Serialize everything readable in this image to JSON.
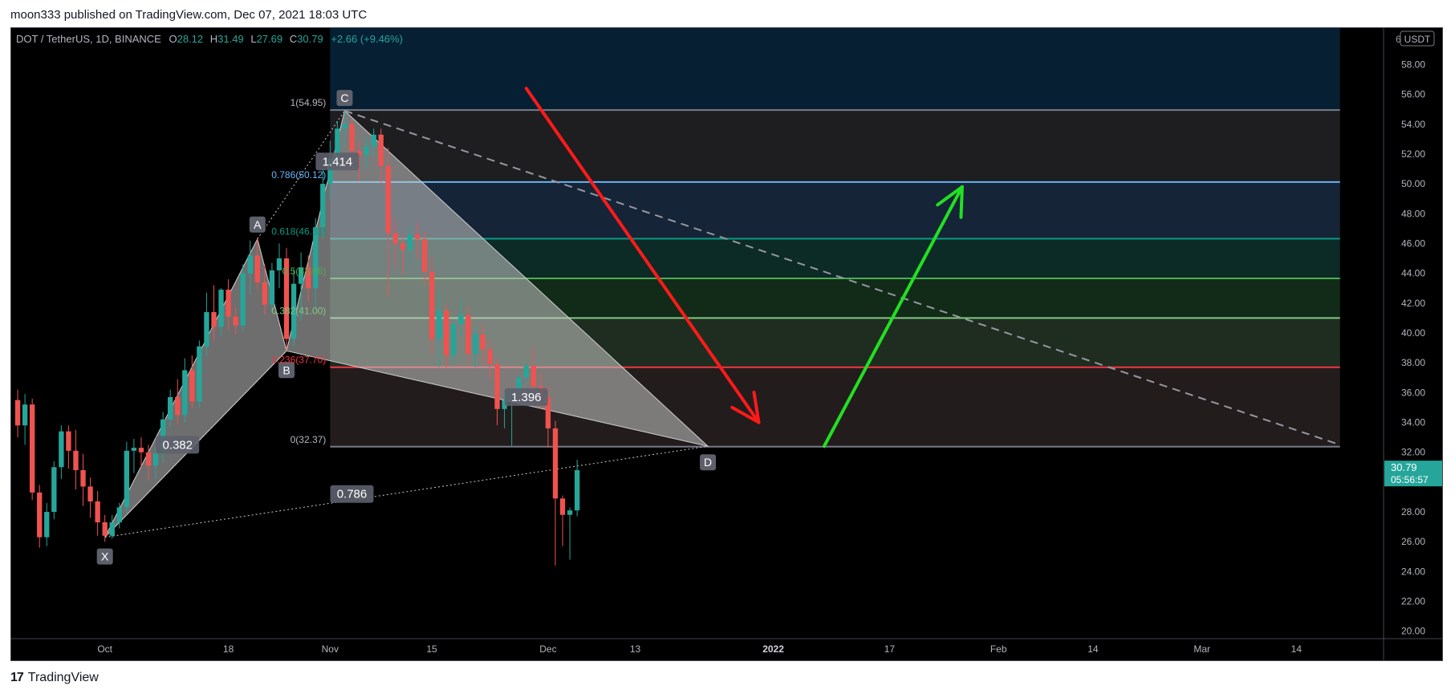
{
  "header": {
    "published": "moon333 published on TradingView.com, Dec 07, 2021 18:03 UTC"
  },
  "footer": {
    "brand": "TradingView",
    "logo": "17"
  },
  "chart_data": {
    "type": "candlestick",
    "symbol_line": {
      "symbol": "DOT / TetherUS, 1D, BINANCE",
      "o_label": "O",
      "open": "28.12",
      "h_label": "H",
      "high": "31.49",
      "l_label": "L",
      "low": "27.69",
      "c_label": "C",
      "close": "30.79",
      "change": "+2.66 (+9.46%)"
    },
    "currency_badge": "USDT",
    "y_top_partial": "6",
    "ylim": [
      19.5,
      60.5
    ],
    "y_ticks": [
      20,
      22,
      24,
      26,
      28,
      30,
      32,
      34,
      36,
      38,
      40,
      42,
      44,
      46,
      48,
      50,
      52,
      54,
      56,
      58
    ],
    "y_tick_labels": [
      "20.00",
      "22.00",
      "24.00",
      "26.00",
      "28.00",
      "",
      "32.00",
      "34.00",
      "36.00",
      "38.00",
      "40.00",
      "42.00",
      "44.00",
      "46.00",
      "48.00",
      "50.00",
      "52.00",
      "54.00",
      "56.00",
      "58.00"
    ],
    "x_ticks": [
      {
        "label": "Oct",
        "day": 0
      },
      {
        "label": "18",
        "day": 17
      },
      {
        "label": "Nov",
        "day": 31
      },
      {
        "label": "15",
        "day": 45
      },
      {
        "label": "Dec",
        "day": 61
      },
      {
        "label": "13",
        "day": 73
      },
      {
        "label": "2022",
        "day": 92,
        "bold": true
      },
      {
        "label": "17",
        "day": 108
      },
      {
        "label": "Feb",
        "day": 123
      },
      {
        "label": "14",
        "day": 136
      },
      {
        "label": "Mar",
        "day": 151
      },
      {
        "label": "14",
        "day": 164
      }
    ],
    "xlim_days": [
      -13,
      176
    ],
    "price_label": {
      "value": "30.79",
      "countdown": "05:56:57",
      "color": "#26a69a"
    },
    "candles": [
      {
        "d": -12,
        "o": 35.5,
        "h": 36.2,
        "c": 33.8,
        "l": 33.0
      },
      {
        "d": -11,
        "o": 33.8,
        "h": 35.9,
        "c": 35.2,
        "l": 32.5
      },
      {
        "d": -10,
        "o": 35.2,
        "h": 35.6,
        "c": 29.3,
        "l": 28.8
      },
      {
        "d": -9,
        "o": 29.3,
        "h": 29.8,
        "c": 26.3,
        "l": 25.6
      },
      {
        "d": -8,
        "o": 26.3,
        "h": 28.6,
        "c": 28.0,
        "l": 25.7
      },
      {
        "d": -7,
        "o": 28.0,
        "h": 31.4,
        "c": 31.0,
        "l": 27.5
      },
      {
        "d": -6,
        "o": 31.0,
        "h": 33.8,
        "c": 33.4,
        "l": 30.2
      },
      {
        "d": -5,
        "o": 33.4,
        "h": 33.8,
        "c": 32.1,
        "l": 30.9
      },
      {
        "d": -4,
        "o": 32.1,
        "h": 33.5,
        "c": 30.8,
        "l": 29.5
      },
      {
        "d": -3,
        "o": 30.8,
        "h": 31.9,
        "c": 29.7,
        "l": 28.4
      },
      {
        "d": -2,
        "o": 29.7,
        "h": 30.3,
        "c": 28.7,
        "l": 27.6
      },
      {
        "d": -1,
        "o": 28.7,
        "h": 29.4,
        "c": 27.3,
        "l": 26.4
      },
      {
        "d": 0,
        "o": 27.3,
        "h": 27.8,
        "c": 26.4,
        "l": 26.0
      },
      {
        "d": 1,
        "o": 26.4,
        "h": 27.8,
        "c": 27.3,
        "l": 26.2
      },
      {
        "d": 2,
        "o": 27.3,
        "h": 28.6,
        "c": 28.3,
        "l": 26.9
      },
      {
        "d": 3,
        "o": 28.3,
        "h": 32.7,
        "c": 32.1,
        "l": 27.9
      },
      {
        "d": 4,
        "o": 32.1,
        "h": 32.9,
        "c": 32.3,
        "l": 30.6
      },
      {
        "d": 5,
        "o": 32.3,
        "h": 33.0,
        "c": 32.0,
        "l": 31.0
      },
      {
        "d": 6,
        "o": 32.0,
        "h": 32.5,
        "c": 31.1,
        "l": 30.1
      },
      {
        "d": 7,
        "o": 31.1,
        "h": 32.3,
        "c": 31.9,
        "l": 30.2
      },
      {
        "d": 8,
        "o": 31.9,
        "h": 34.7,
        "c": 34.2,
        "l": 31.3
      },
      {
        "d": 9,
        "o": 34.2,
        "h": 36.2,
        "c": 35.7,
        "l": 33.7
      },
      {
        "d": 10,
        "o": 35.7,
        "h": 36.9,
        "c": 34.5,
        "l": 33.9
      },
      {
        "d": 11,
        "o": 34.5,
        "h": 38.3,
        "c": 37.5,
        "l": 34.0
      },
      {
        "d": 12,
        "o": 37.5,
        "h": 38.5,
        "c": 35.4,
        "l": 35.0
      },
      {
        "d": 13,
        "o": 35.4,
        "h": 39.5,
        "c": 39.1,
        "l": 35.0
      },
      {
        "d": 14,
        "o": 39.1,
        "h": 42.7,
        "c": 41.4,
        "l": 38.4
      },
      {
        "d": 15,
        "o": 41.4,
        "h": 43.2,
        "c": 40.4,
        "l": 39.4
      },
      {
        "d": 16,
        "o": 40.4,
        "h": 43.0,
        "c": 42.9,
        "l": 39.8
      },
      {
        "d": 17,
        "o": 42.9,
        "h": 43.6,
        "c": 41.1,
        "l": 40.2
      },
      {
        "d": 18,
        "o": 41.1,
        "h": 41.7,
        "c": 40.5,
        "l": 39.9
      },
      {
        "d": 19,
        "o": 40.5,
        "h": 44.6,
        "c": 44.0,
        "l": 40.1
      },
      {
        "d": 20,
        "o": 44.0,
        "h": 46.2,
        "c": 45.2,
        "l": 42.6
      },
      {
        "d": 21,
        "o": 45.2,
        "h": 46.4,
        "c": 43.4,
        "l": 42.9
      },
      {
        "d": 22,
        "o": 43.4,
        "h": 44.6,
        "c": 41.9,
        "l": 41.2
      },
      {
        "d": 23,
        "o": 41.9,
        "h": 44.7,
        "c": 44.2,
        "l": 41.4
      },
      {
        "d": 24,
        "o": 44.2,
        "h": 46.0,
        "c": 45.0,
        "l": 43.0
      },
      {
        "d": 25,
        "o": 45.0,
        "h": 45.7,
        "c": 39.6,
        "l": 38.8
      },
      {
        "d": 26,
        "o": 39.6,
        "h": 44.3,
        "c": 43.3,
        "l": 39.1
      },
      {
        "d": 27,
        "o": 43.3,
        "h": 45.4,
        "c": 44.4,
        "l": 40.8
      },
      {
        "d": 28,
        "o": 44.4,
        "h": 45.2,
        "c": 43.0,
        "l": 42.1
      },
      {
        "d": 29,
        "o": 43.0,
        "h": 47.7,
        "c": 47.1,
        "l": 41.7
      },
      {
        "d": 30,
        "o": 47.1,
        "h": 51.0,
        "c": 50.0,
        "l": 46.3
      },
      {
        "d": 31,
        "o": 50.0,
        "h": 52.9,
        "c": 51.7,
        "l": 48.9
      },
      {
        "d": 32,
        "o": 51.7,
        "h": 54.2,
        "c": 53.7,
        "l": 50.9
      },
      {
        "d": 33,
        "o": 53.7,
        "h": 54.9,
        "c": 54.0,
        "l": 52.4
      },
      {
        "d": 34,
        "o": 54.0,
        "h": 54.4,
        "c": 52.2,
        "l": 50.9
      },
      {
        "d": 35,
        "o": 52.2,
        "h": 52.8,
        "c": 51.9,
        "l": 50.2
      },
      {
        "d": 36,
        "o": 51.9,
        "h": 53.2,
        "c": 52.5,
        "l": 51.0
      },
      {
        "d": 37,
        "o": 52.5,
        "h": 53.7,
        "c": 53.3,
        "l": 51.9
      },
      {
        "d": 38,
        "o": 53.3,
        "h": 53.7,
        "c": 51.2,
        "l": 50.1
      },
      {
        "d": 39,
        "o": 51.2,
        "h": 52.4,
        "c": 46.7,
        "l": 42.4
      },
      {
        "d": 40,
        "o": 46.7,
        "h": 47.7,
        "c": 46.0,
        "l": 44.3
      },
      {
        "d": 41,
        "o": 46.0,
        "h": 46.6,
        "c": 45.6,
        "l": 43.9
      },
      {
        "d": 42,
        "o": 45.6,
        "h": 47.1,
        "c": 46.6,
        "l": 44.7
      },
      {
        "d": 43,
        "o": 46.6,
        "h": 47.4,
        "c": 46.3,
        "l": 45.0
      },
      {
        "d": 44,
        "o": 46.3,
        "h": 46.8,
        "c": 44.1,
        "l": 43.2
      },
      {
        "d": 45,
        "o": 44.1,
        "h": 45.1,
        "c": 39.6,
        "l": 38.6
      },
      {
        "d": 46,
        "o": 39.6,
        "h": 42.8,
        "c": 41.5,
        "l": 37.7
      },
      {
        "d": 47,
        "o": 41.5,
        "h": 42.0,
        "c": 38.5,
        "l": 37.6
      },
      {
        "d": 48,
        "o": 38.5,
        "h": 40.8,
        "c": 40.6,
        "l": 37.9
      },
      {
        "d": 49,
        "o": 40.6,
        "h": 42.3,
        "c": 41.2,
        "l": 39.8
      },
      {
        "d": 50,
        "o": 41.2,
        "h": 41.8,
        "c": 38.6,
        "l": 37.9
      },
      {
        "d": 51,
        "o": 38.6,
        "h": 40.4,
        "c": 39.9,
        "l": 37.7
      },
      {
        "d": 52,
        "o": 39.9,
        "h": 40.6,
        "c": 38.9,
        "l": 37.9
      },
      {
        "d": 53,
        "o": 38.9,
        "h": 39.5,
        "c": 37.9,
        "l": 36.9
      },
      {
        "d": 54,
        "o": 37.9,
        "h": 38.3,
        "c": 34.9,
        "l": 33.8
      },
      {
        "d": 55,
        "o": 34.9,
        "h": 35.9,
        "c": 35.5,
        "l": 33.6
      },
      {
        "d": 56,
        "o": 35.5,
        "h": 36.2,
        "c": 36.1,
        "l": 32.4
      },
      {
        "d": 57,
        "o": 36.1,
        "h": 37.2,
        "c": 37.0,
        "l": 35.6
      },
      {
        "d": 58,
        "o": 37.0,
        "h": 38.0,
        "c": 37.8,
        "l": 36.5
      },
      {
        "d": 59,
        "o": 37.8,
        "h": 39.0,
        "c": 36.4,
        "l": 35.8
      },
      {
        "d": 60,
        "o": 36.4,
        "h": 37.3,
        "c": 35.7,
        "l": 34.9
      },
      {
        "d": 61,
        "o": 35.7,
        "h": 36.4,
        "c": 33.6,
        "l": 32.3
      },
      {
        "d": 62,
        "o": 33.6,
        "h": 34.1,
        "c": 28.9,
        "l": 24.4
      },
      {
        "d": 63,
        "o": 28.9,
        "h": 29.1,
        "c": 27.8,
        "l": 25.7
      },
      {
        "d": 64,
        "o": 27.8,
        "h": 28.3,
        "c": 28.1,
        "l": 24.8
      },
      {
        "d": 65,
        "o": 28.1,
        "h": 31.5,
        "c": 30.8,
        "l": 27.7
      }
    ],
    "fib": {
      "left_day": 31,
      "right_day": 170,
      "levels": [
        {
          "ratio": "1",
          "value": 54.95,
          "label": "1(54.95)",
          "line": "#787b86",
          "fill": "#1e1e20"
        },
        {
          "ratio": "0.786",
          "value": 50.12,
          "label": "0.786(50.12)",
          "line": "#64b5f6",
          "fill": "#162437"
        },
        {
          "ratio": "0.618",
          "value": 46.32,
          "label": "0.618(46.32)",
          "line": "#089981",
          "fill": "#0c2a26"
        },
        {
          "ratio": "0.5",
          "value": 43.66,
          "label": "0.5(43.66)",
          "line": "#4caf50",
          "fill": "#112b18"
        },
        {
          "ratio": "0.382",
          "value": 41.0,
          "label": "0.382(41.00)",
          "line": "#81c784",
          "fill": "#1f2d20"
        },
        {
          "ratio": "0.236",
          "value": 37.7,
          "label": "0.236(37.70)",
          "line": "#f23645",
          "fill": "#231c1c"
        },
        {
          "ratio": "0",
          "value": 32.37,
          "label": "0(32.37)",
          "line": "#787b86",
          "fill": "#3a1212"
        }
      ],
      "top_fill": "#061f33",
      "top_value": 60.5
    },
    "pattern": {
      "points": [
        {
          "name": "X",
          "day": 0,
          "price": 26.3
        },
        {
          "name": "A",
          "day": 21,
          "price": 46.3
        },
        {
          "name": "B",
          "day": 25,
          "price": 38.8
        },
        {
          "name": "C",
          "day": 33,
          "price": 54.9
        },
        {
          "name": "D",
          "day": 83,
          "price": 32.4
        }
      ],
      "ratio_labels": [
        {
          "text": "0.382",
          "day": 10,
          "price": 32.5
        },
        {
          "text": "0.786",
          "day": 34,
          "price": 29.2
        },
        {
          "text": "1.396",
          "day": 58,
          "price": 35.7
        },
        {
          "text": "1.414",
          "day": 32,
          "price": 51.5
        }
      ]
    },
    "arrows": [
      {
        "name": "red",
        "color": "#ff1a1a",
        "from_day": 58,
        "from_price": 56.4,
        "to_day": 90,
        "to_price": 34.0
      },
      {
        "name": "green",
        "color": "#22e022",
        "from_day": 99,
        "from_price": 32.4,
        "to_day": 118,
        "to_price": 49.8
      }
    ],
    "trendline": {
      "from_day": 33,
      "from_price": 54.9,
      "to_day": 170,
      "to_price": 32.5,
      "color": "#9598a1"
    }
  }
}
